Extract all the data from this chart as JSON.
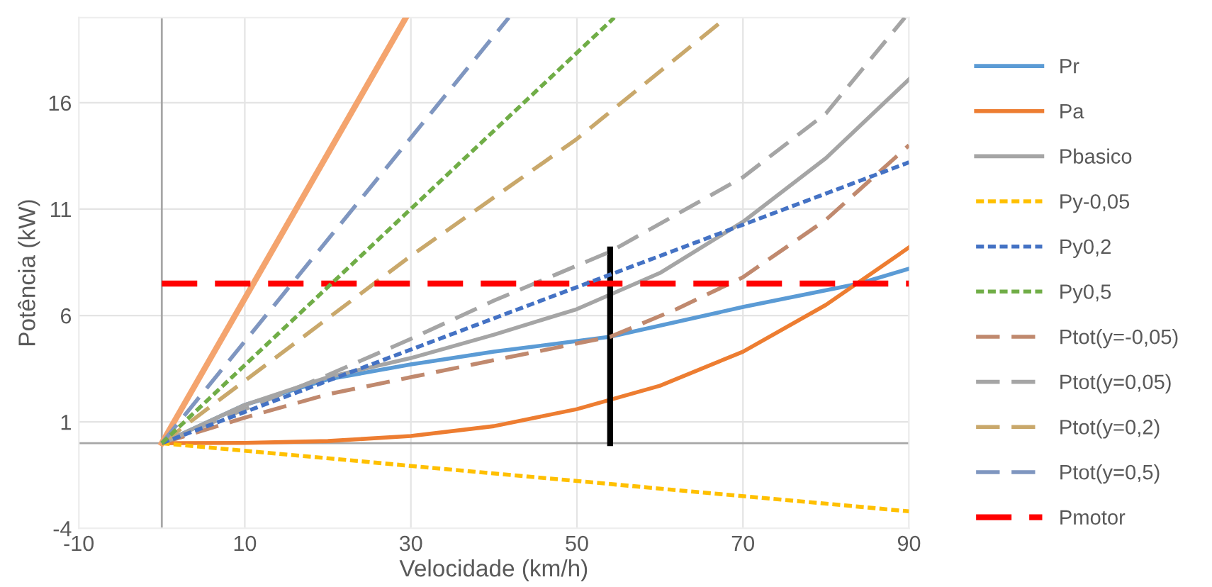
{
  "chart_data": {
    "type": "line",
    "xlabel": "Velocidade (km/h)",
    "ylabel": "Potência (kW)",
    "xlim": [
      -10,
      90
    ],
    "ylim": [
      -4,
      20
    ],
    "xticks": [
      -10,
      10,
      30,
      50,
      70,
      90
    ],
    "yticks": [
      -4,
      1,
      6,
      11,
      16
    ],
    "grid": true,
    "legend": "right",
    "marker": "none",
    "series": [
      {
        "name": "Pr",
        "color": "#5b9bd5",
        "line_style": "solid",
        "x": [
          0,
          10,
          20,
          30,
          40,
          54,
          70,
          84,
          90
        ],
        "values": [
          0,
          1.8,
          3.0,
          3.7,
          4.3,
          5.0,
          6.4,
          7.5,
          8.2
        ]
      },
      {
        "name": "Pa",
        "color": "#ed7d31",
        "line_style": "solid",
        "x": [
          0,
          10,
          20,
          30,
          40,
          50,
          60,
          70,
          80,
          90
        ],
        "values": [
          0,
          0.01,
          0.1,
          0.34,
          0.8,
          1.6,
          2.7,
          4.3,
          6.5,
          9.2
        ]
      },
      {
        "name": "Pbasico",
        "color": "#a5a5a5",
        "line_style": "solid",
        "x": [
          0,
          10,
          20,
          30,
          40,
          50,
          60,
          70,
          80,
          90
        ],
        "values": [
          0,
          1.8,
          3.1,
          4.0,
          5.1,
          6.3,
          8.0,
          10.4,
          13.4,
          17.1
        ]
      },
      {
        "name": "Py-0,05",
        "color": "#ffc000",
        "line_style": "dotted",
        "x": [
          0,
          90
        ],
        "values": [
          0,
          -3.2
        ]
      },
      {
        "name": "Py0,2",
        "color": "#4472c4",
        "line_style": "dotted",
        "x": [
          0,
          90
        ],
        "values": [
          0,
          13.2
        ]
      },
      {
        "name": "Py0,5",
        "color": "#70ad47",
        "line_style": "dotted",
        "x": [
          0,
          54.5
        ],
        "values": [
          0,
          20
        ]
      },
      {
        "name": "Ptot(y=-0,05)",
        "color": "#c0896e",
        "line_style": "dashed",
        "x": [
          0,
          10,
          20,
          30,
          40,
          54,
          62,
          70,
          80,
          90
        ],
        "values": [
          0,
          1.2,
          2.3,
          3.1,
          3.9,
          5.0,
          6.3,
          7.8,
          10.5,
          14.0
        ]
      },
      {
        "name": "Ptot(y=0,05)",
        "color": "#a5a5a5",
        "line_style": "dashed",
        "x": [
          0,
          10,
          20,
          30,
          40,
          54,
          70,
          80,
          89.5
        ],
        "values": [
          0,
          1.6,
          3.2,
          4.9,
          6.7,
          9.0,
          12.5,
          15.5,
          20
        ]
      },
      {
        "name": "Ptot(y=0,2)",
        "color": "#c9a86b",
        "line_style": "dashed",
        "x": [
          0,
          30,
          50,
          68
        ],
        "values": [
          0,
          8.8,
          14.3,
          20
        ]
      },
      {
        "name": "Ptot(y=0,5)",
        "color": "#7f96c0",
        "line_style": "dashed",
        "x": [
          0,
          41.8
        ],
        "values": [
          0,
          20
        ]
      },
      {
        "name": "Pmotor",
        "color": "#ff0000",
        "line_style": "dashed",
        "x": [
          0,
          90
        ],
        "values": [
          7.5,
          7.5
        ]
      },
      {
        "color": "#f4a46e",
        "line_style": "solid",
        "x": [
          0,
          29.4
        ],
        "values": [
          0,
          20
        ]
      },
      {
        "color": "#000000",
        "line_style": "solid",
        "x": [
          54,
          54
        ],
        "values": [
          0,
          9.1
        ]
      }
    ]
  }
}
